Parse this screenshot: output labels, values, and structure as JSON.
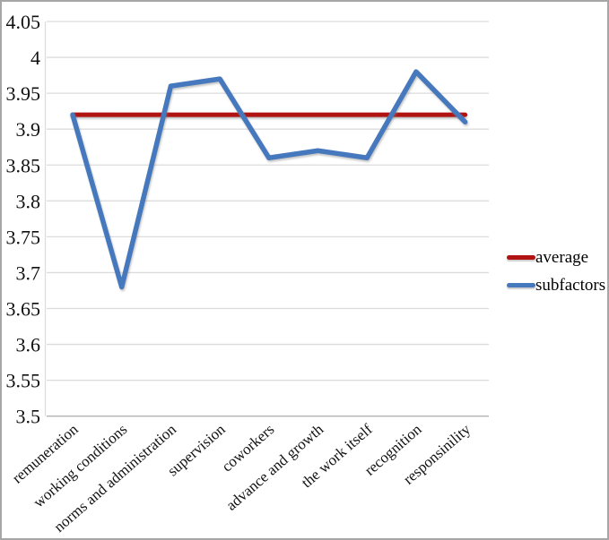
{
  "chart_data": {
    "type": "line",
    "categories": [
      "remuneration",
      "working conditions",
      "norms and administration",
      "supervision",
      "coworkers",
      "advance and growth",
      "the work itself",
      "recognition",
      "responsinility"
    ],
    "series": [
      {
        "name": "average",
        "color": "#b11212",
        "values": [
          3.92,
          3.92,
          3.92,
          3.92,
          3.92,
          3.92,
          3.92,
          3.92,
          3.92
        ]
      },
      {
        "name": "subfactors",
        "color": "#4678bd",
        "values": [
          3.92,
          3.68,
          3.96,
          3.97,
          3.86,
          3.87,
          3.86,
          3.98,
          3.91
        ]
      }
    ],
    "ylim": [
      3.5,
      4.05
    ],
    "ytick_labels": [
      "3.5",
      "3.55",
      "3.6",
      "3.65",
      "3.7",
      "3.75",
      "3.8",
      "3.85",
      "3.9",
      "3.95",
      "4",
      "4.05"
    ],
    "grid": true,
    "legend_position": "right",
    "gridline_color": "#dcdcdc",
    "baseline_color": "#b3b3b3"
  }
}
